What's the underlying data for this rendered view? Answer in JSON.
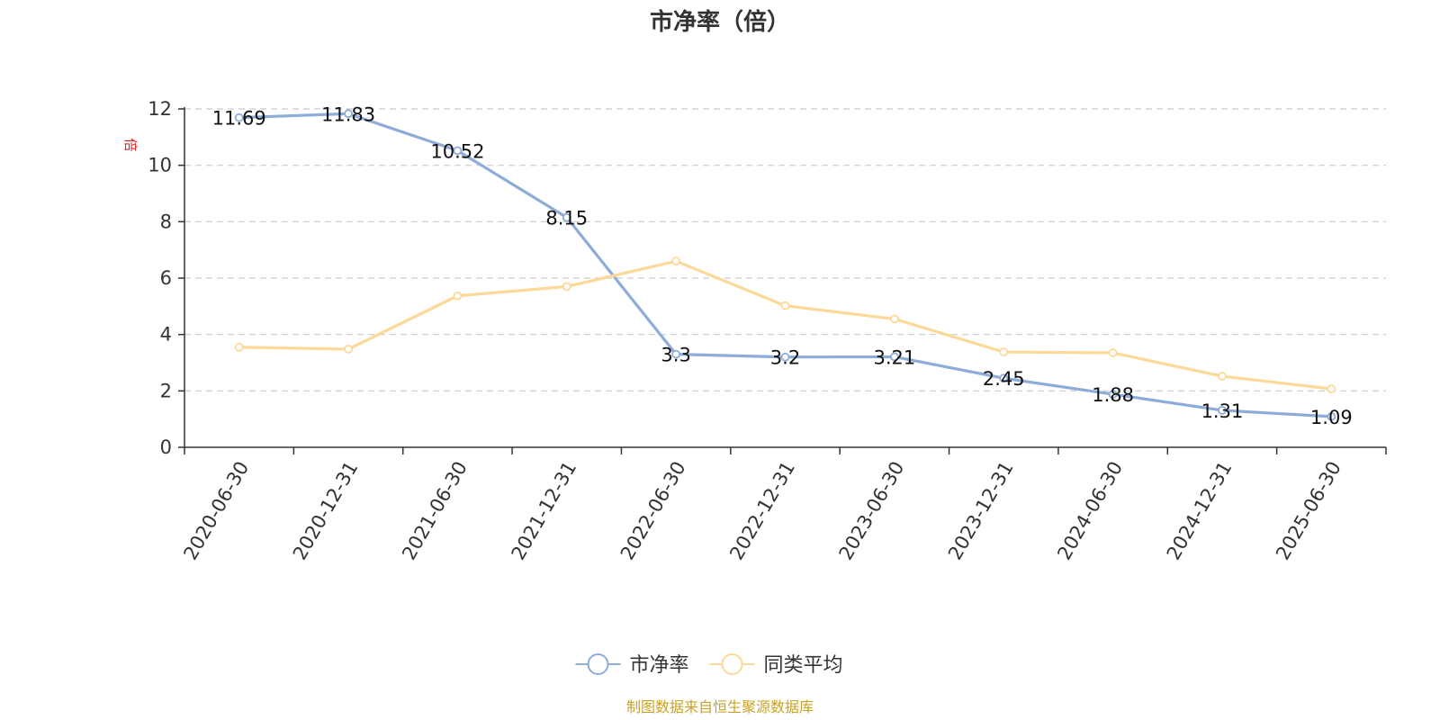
{
  "chart_data": {
    "type": "line",
    "title": "市净率（倍）",
    "ylabel": "倍",
    "ylim": [
      0,
      12
    ],
    "yticks": [
      0,
      2,
      4,
      6,
      8,
      10,
      12
    ],
    "grid": true,
    "legend_position": "bottom-center",
    "categories": [
      "2020-06-30",
      "2020-12-31",
      "2021-06-30",
      "2021-12-31",
      "2022-06-30",
      "2022-12-31",
      "2023-06-30",
      "2023-12-31",
      "2024-06-30",
      "2024-12-31",
      "2025-06-30"
    ],
    "series": [
      {
        "name": "市净率",
        "color": "#8eacd8",
        "values": [
          11.69,
          11.83,
          10.52,
          8.15,
          3.3,
          3.2,
          3.21,
          2.45,
          1.88,
          1.31,
          1.09
        ],
        "labels_shown": true
      },
      {
        "name": "同类平均",
        "color": "#fcd999",
        "values": [
          3.55,
          3.48,
          5.37,
          5.7,
          6.6,
          5.02,
          4.55,
          3.38,
          3.35,
          2.52,
          2.07
        ],
        "labels_shown": false
      }
    ]
  },
  "source_note": "制图数据来自恒生聚源数据库",
  "colors": {
    "axis": "#333333",
    "grid": "#cccccc",
    "unit": "#e02020",
    "source": "#c9a227"
  }
}
